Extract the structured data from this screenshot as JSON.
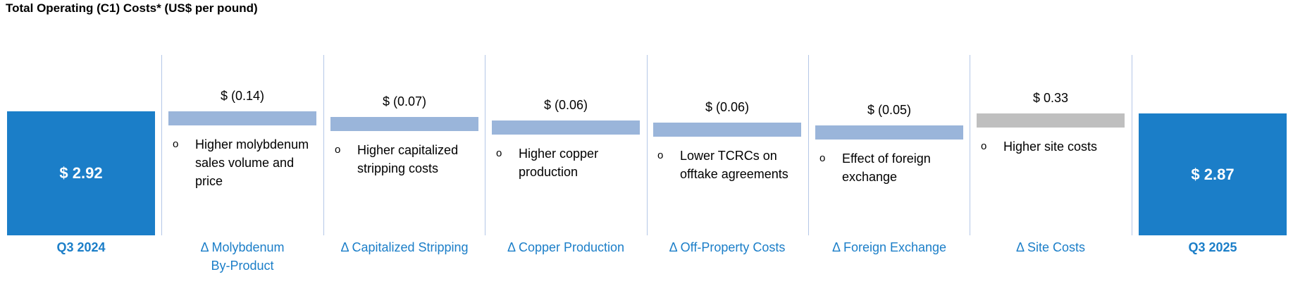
{
  "title": "Total Operating (C1) Costs* (US$ per pound)",
  "colors": {
    "total": "#1b7ec8",
    "decrease": "#9ab5da",
    "increase": "#bfbfbf",
    "category_text": "#1b7ec8",
    "divider": "#b4c7e7"
  },
  "chart_data": {
    "type": "bar",
    "subtype": "waterfall",
    "title": "Total Operating (C1) Costs* (US$ per pound)",
    "categories": [
      "Q3 2024",
      "Δ Molybdenum By-Product",
      "Δ Capitalized Stripping",
      "Δ Copper Production",
      "Δ Off-Property Costs",
      "Δ Foreign Exchange",
      "Δ Site Costs",
      "Q3 2025"
    ],
    "values": [
      2.92,
      -0.14,
      -0.07,
      -0.06,
      -0.06,
      -0.05,
      0.33,
      2.87
    ],
    "value_labels": [
      "$ 2.92",
      "$ (0.14)",
      "$ (0.07)",
      "$ (0.06)",
      "$ (0.06)",
      "$ (0.05)",
      "$ 0.33",
      "$ 2.87"
    ],
    "notes": [
      "",
      "Higher molybdenum sales volume and price",
      "Higher capitalized stripping costs",
      "Higher copper production",
      "Lower TCRCs on offtake agreements",
      "Effect of foreign exchange",
      "Higher site costs",
      ""
    ],
    "bullet_glyph": "o"
  }
}
